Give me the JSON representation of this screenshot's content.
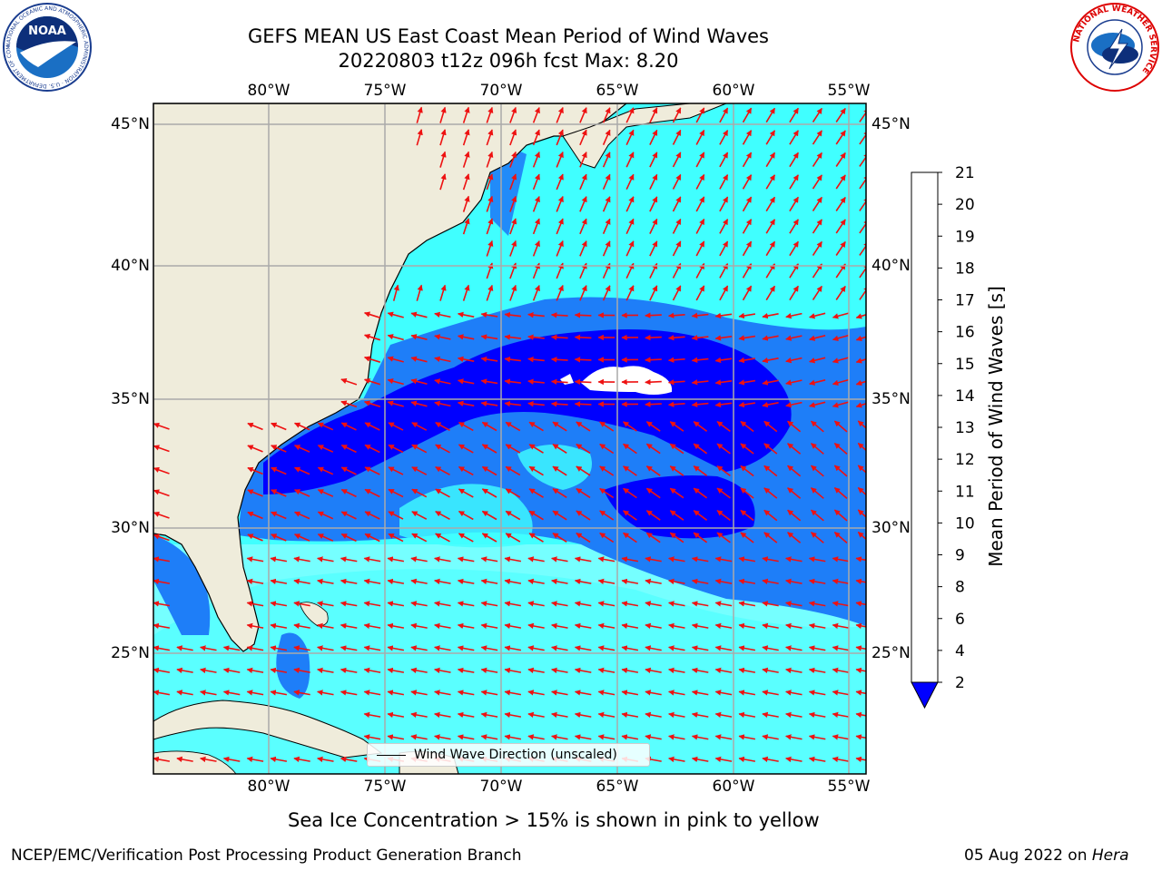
{
  "header": {
    "title_line1": "GEFS MEAN US East Coast Mean Period of Wind Waves",
    "title_line2": "20220803 t12z 096h fcst   Max: 8.20"
  },
  "logos": {
    "noaa_text": "NOAA",
    "noaa_ring": "NATIONAL OCEANIC AND ATMOSPHERIC ADMINISTRATION · U.S. DEPARTMENT OF COMMERCE",
    "nws_ring": "NATIONAL WEATHER SERVICE"
  },
  "map": {
    "lon_labels": [
      "80°W",
      "75°W",
      "70°W",
      "65°W",
      "60°W",
      "55°W"
    ],
    "lat_labels": [
      "45°N",
      "40°N",
      "35°N",
      "30°N",
      "25°N"
    ],
    "land_color": "#efecdb",
    "arrow_color": "#ee1111",
    "legend_label": "Wind Wave Direction (unscaled)"
  },
  "colorbar": {
    "title": "Mean Period of Wind Waves [s]",
    "ticks": [
      "2",
      "4",
      "6",
      "8",
      "9",
      "10",
      "11",
      "12",
      "13",
      "14",
      "15",
      "16",
      "17",
      "18",
      "19",
      "20",
      "21"
    ],
    "colors": [
      "#1e7ef8",
      "#00ffff",
      "#40ffff",
      "#a0ffff",
      "#4ee87e",
      "#00d800",
      "#58e000",
      "#b4f000",
      "#e0f800",
      "#f0ff00",
      "#ffff00",
      "#ffd800",
      "#ffb000",
      "#ff8c00",
      "#ff5000",
      "#ff2000",
      "#ff0000"
    ],
    "under_color": "#0000ff"
  },
  "notes": {
    "ice": "Sea Ice Concentration > 15% is shown in pink to yellow"
  },
  "footer": {
    "left": "NCEP/EMC/Verification Post Processing Product Generation Branch",
    "right_prefix": "05 Aug 2022 on ",
    "right_host": "Hera"
  }
}
